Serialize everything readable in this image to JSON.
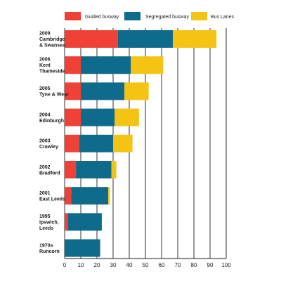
{
  "chart_data": {
    "type": "bar",
    "orientation": "horizontal",
    "stacked": true,
    "title": "",
    "xlabel": "",
    "ylabel": "",
    "xlim": [
      0,
      100
    ],
    "x_ticks": [
      "0",
      "10",
      "20",
      "30",
      "40",
      "50",
      "60",
      "70",
      "80",
      "90",
      "100"
    ],
    "grid": true,
    "legend_position": "top",
    "categories": [
      [
        "2009",
        "Cambridge",
        "& Swansea"
      ],
      [
        "2006",
        "Kent",
        "Thameside"
      ],
      [
        "2005",
        "Tyne & Wear"
      ],
      [
        "2004",
        "Edinburgh"
      ],
      [
        "2003",
        "Crawley"
      ],
      [
        "2002",
        "Bradford"
      ],
      [
        "2001",
        "East Leeds"
      ],
      [
        "1995",
        "Ipswich,",
        "Leeds"
      ],
      [
        "1970s",
        "Runcorn"
      ]
    ],
    "series": [
      {
        "name": "Guided busway",
        "color": "#ef4136",
        "values": [
          33,
          10,
          10,
          10,
          9,
          7,
          4,
          2,
          0
        ]
      },
      {
        "name": "Segregated busway",
        "color": "#0e6b8c",
        "values": [
          34,
          31,
          27,
          21,
          21,
          22,
          23,
          21,
          22
        ]
      },
      {
        "name": "Bus Lanes",
        "color": "#f5c314",
        "values": [
          27,
          20,
          15,
          15,
          12,
          3,
          1,
          0,
          0
        ]
      }
    ]
  }
}
